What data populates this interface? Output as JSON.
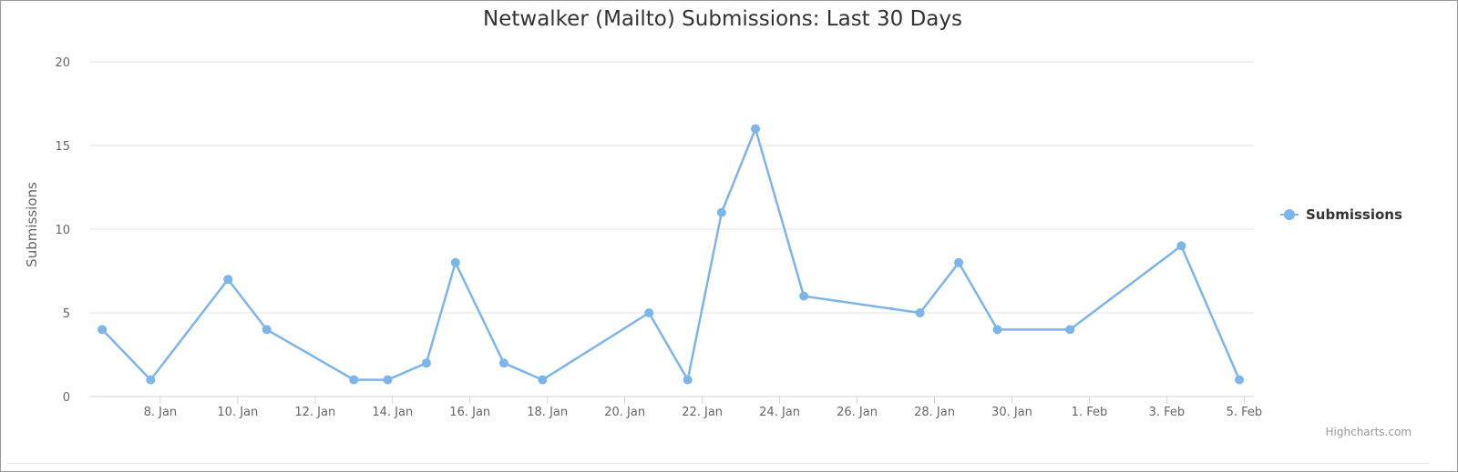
{
  "chart_data": {
    "type": "line",
    "title": "Netwalker (Mailto) Submissions: Last 30 Days",
    "ylabel": "Submissions",
    "xlabel": "",
    "ylim": [
      0,
      20
    ],
    "y_ticks": [
      "0",
      "5",
      "10",
      "15",
      "20"
    ],
    "x_ticks": [
      {
        "date": "2021-01-08",
        "label": "8. Jan"
      },
      {
        "date": "2021-01-10",
        "label": "10. Jan"
      },
      {
        "date": "2021-01-12",
        "label": "12. Jan"
      },
      {
        "date": "2021-01-14",
        "label": "14. Jan"
      },
      {
        "date": "2021-01-16",
        "label": "16. Jan"
      },
      {
        "date": "2021-01-18",
        "label": "18. Jan"
      },
      {
        "date": "2021-01-20",
        "label": "20. Jan"
      },
      {
        "date": "2021-01-22",
        "label": "22. Jan"
      },
      {
        "date": "2021-01-24",
        "label": "24. Jan"
      },
      {
        "date": "2021-01-26",
        "label": "26. Jan"
      },
      {
        "date": "2021-01-28",
        "label": "28. Jan"
      },
      {
        "date": "2021-01-30",
        "label": "30. Jan"
      },
      {
        "date": "2021-02-01",
        "label": "1. Feb"
      },
      {
        "date": "2021-02-03",
        "label": "3. Feb"
      },
      {
        "date": "2021-02-05",
        "label": "5. Feb"
      }
    ],
    "x_range": [
      "2021-01-06T04:00",
      "2021-02-05T06:00"
    ],
    "grid": true,
    "legend_position": "right",
    "series": [
      {
        "name": "Submissions",
        "color": "#7cb5ec",
        "points": [
          {
            "x": "2021-01-06T12:00",
            "y": 4
          },
          {
            "x": "2021-01-07T18:00",
            "y": 1
          },
          {
            "x": "2021-01-09T18:00",
            "y": 7
          },
          {
            "x": "2021-01-10T18:00",
            "y": 4
          },
          {
            "x": "2021-01-13T00:00",
            "y": 1
          },
          {
            "x": "2021-01-13T21:00",
            "y": 1
          },
          {
            "x": "2021-01-14T21:00",
            "y": 2
          },
          {
            "x": "2021-01-15T15:00",
            "y": 8
          },
          {
            "x": "2021-01-16T21:00",
            "y": 2
          },
          {
            "x": "2021-01-17T21:00",
            "y": 1
          },
          {
            "x": "2021-01-20T15:00",
            "y": 5
          },
          {
            "x": "2021-01-21T15:00",
            "y": 1
          },
          {
            "x": "2021-01-22T12:00",
            "y": 11
          },
          {
            "x": "2021-01-23T09:00",
            "y": 16
          },
          {
            "x": "2021-01-24T15:00",
            "y": 6
          },
          {
            "x": "2021-01-27T15:00",
            "y": 5
          },
          {
            "x": "2021-01-28T15:00",
            "y": 8
          },
          {
            "x": "2021-01-29T15:00",
            "y": 4
          },
          {
            "x": "2021-01-31T12:00",
            "y": 4
          },
          {
            "x": "2021-02-03T09:00",
            "y": 9
          },
          {
            "x": "2021-02-04T21:00",
            "y": 1
          }
        ]
      }
    ]
  },
  "credits": "Highcharts.com"
}
